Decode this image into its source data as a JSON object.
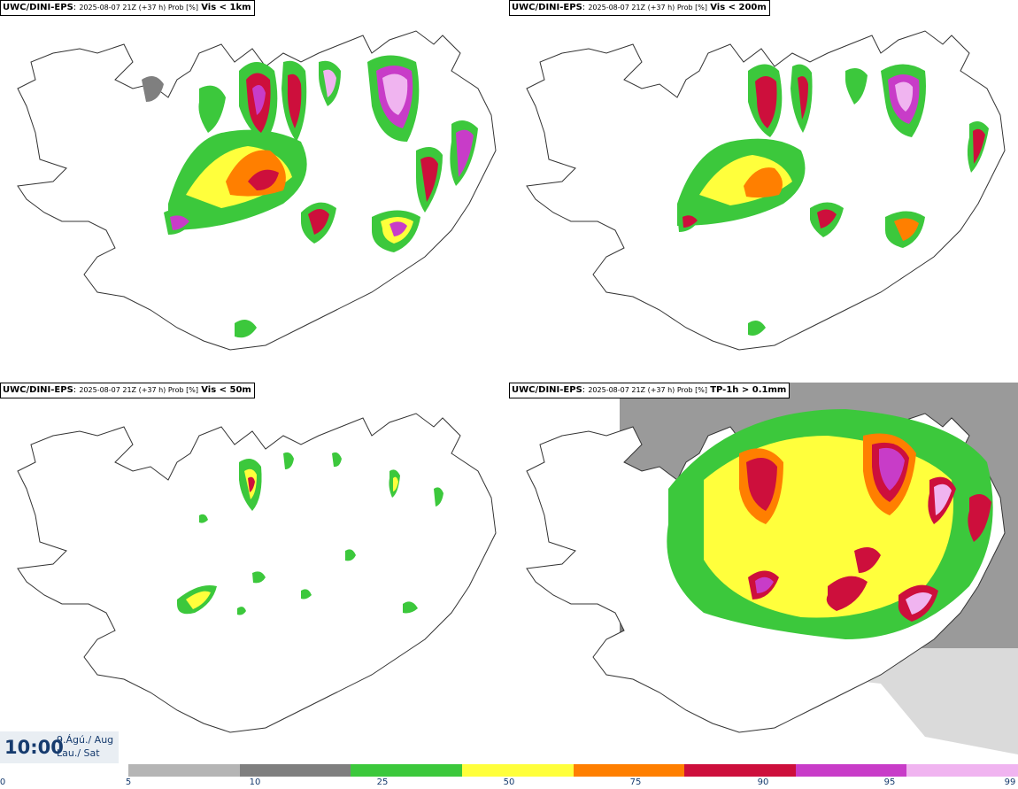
{
  "panels": [
    {
      "model": "UWC/DINI-EPS",
      "meta": "2025-08-07 21Z (+37 h) Prob [%]",
      "var": "Vis < 1km"
    },
    {
      "model": "UWC/DINI-EPS",
      "meta": "2025-08-07 21Z (+37 h) Prob [%]",
      "var": "Vis < 200m"
    },
    {
      "model": "UWC/DINI-EPS",
      "meta": "2025-08-07 21Z (+37 h) Prob [%]",
      "var": "Vis < 50m"
    },
    {
      "model": "UWC/DINI-EPS",
      "meta": "2025-08-07 21Z (+37 h) Prob [%]",
      "var": "TP-1h > 0.1mm"
    }
  ],
  "time": {
    "clock": "10:00",
    "date_line1": "9.Ágú./ Aug",
    "date_line2": "Lau./ Sat"
  },
  "legend": {
    "colors": [
      "#b5b5b5",
      "#7f7f7f",
      "#3cc83c",
      "#ffff3c",
      "#ff7f00",
      "#cd0f3c",
      "#c83cc8",
      "#f0b4f0"
    ],
    "ticks": [
      "0",
      "5",
      "10",
      "25",
      "50",
      "75",
      "90",
      "95",
      "99"
    ]
  }
}
